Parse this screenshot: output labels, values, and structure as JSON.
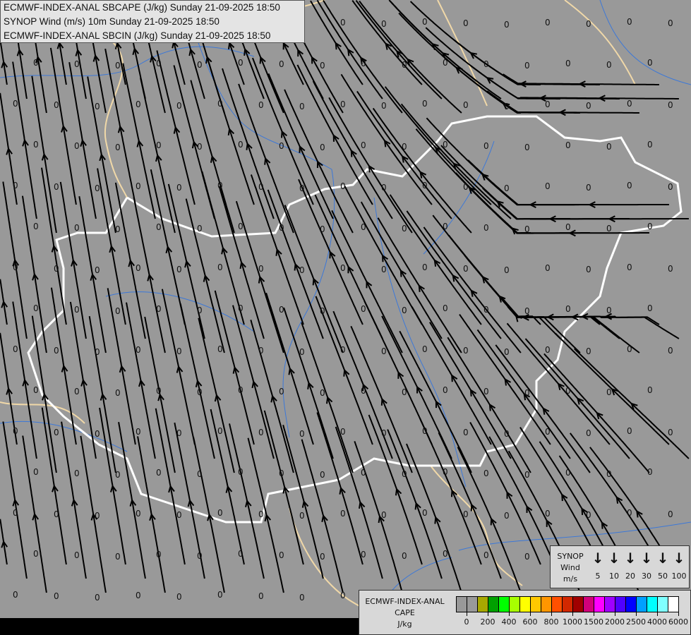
{
  "header": {
    "lines": [
      "ECMWF-INDEX-ANAL SBCAPE (J/kg) Sunday 21-09-2025 18:50",
      "SYNOP Wind (m/s) 10m Sunday 21-09-2025 18:50",
      "ECMWF-INDEX-ANAL SBCIN (J/kg) Sunday 21-09-2025 18:50"
    ]
  },
  "wind_legend": {
    "title_lines": [
      "SYNOP",
      "Wind",
      "m/s"
    ],
    "arrow_icon": "arrow-down-icon",
    "values": [
      "5",
      "10",
      "20",
      "30",
      "50",
      "100"
    ]
  },
  "cape_legend": {
    "title_lines": [
      "ECMWF-INDEX-ANAL",
      "CAPE",
      "J/kg"
    ],
    "colors": [
      "#999999",
      "#999999",
      "#a8a800",
      "#00a000",
      "#00ff00",
      "#a8ff00",
      "#ffff00",
      "#ffc800",
      "#ff9600",
      "#ff5000",
      "#d22800",
      "#a00000",
      "#d2007a",
      "#ff00ff",
      "#a000ff",
      "#5000ff",
      "#0000ff",
      "#00a0ff",
      "#00ffff",
      "#80ffff",
      "#ffffff"
    ],
    "labels": [
      "0",
      "200",
      "400",
      "600",
      "800",
      "1000",
      "1500",
      "2000",
      "2500",
      "4000",
      "6000"
    ]
  },
  "map": {
    "background": "#999999",
    "country_border_color": "#f0d8a8",
    "focus_border_color": "#ffffff",
    "river_color": "#3c78d8",
    "streamline_color": "#000000",
    "cin_value": "0"
  }
}
